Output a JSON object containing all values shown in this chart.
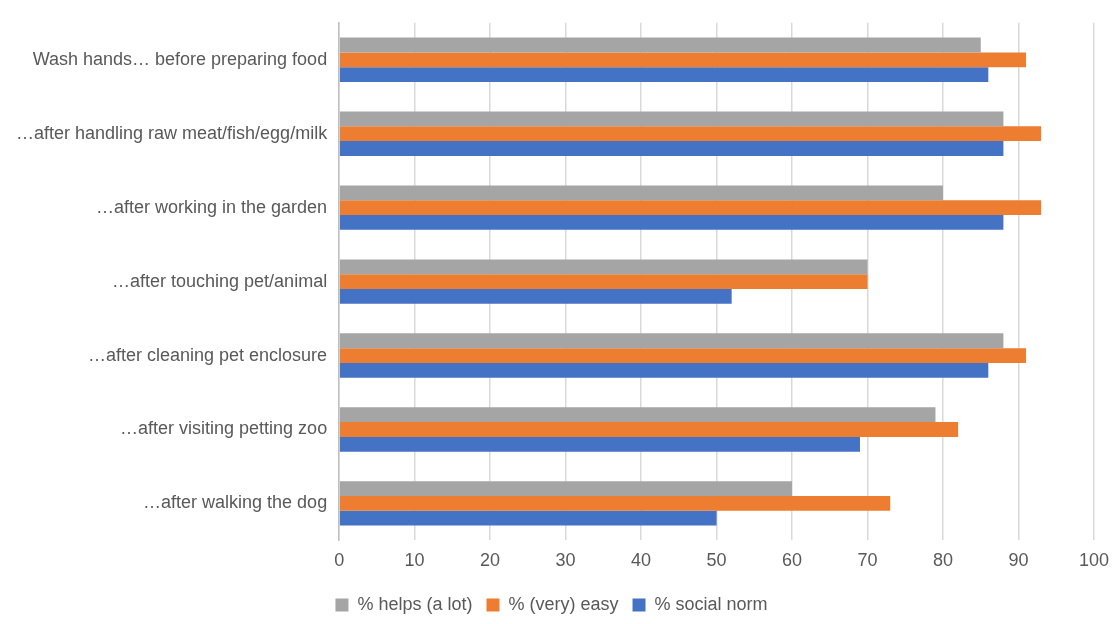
{
  "chart_data": {
    "type": "bar",
    "orientation": "horizontal",
    "categories": [
      "Wash hands… before preparing food",
      "…after handling raw meat/fish/egg/milk",
      "…after working in the garden",
      "…after touching pet/animal",
      "…after cleaning pet enclosure",
      "…after visiting petting zoo",
      "…after walking the dog"
    ],
    "series": [
      {
        "name": "% helps (a lot)",
        "color": "#a5a5a5",
        "values": [
          85,
          88,
          80,
          70,
          88,
          79,
          60
        ]
      },
      {
        "name": "% (very) easy",
        "color": "#ed7d31",
        "values": [
          91,
          93,
          93,
          70,
          91,
          82,
          73
        ]
      },
      {
        "name": "% social norm",
        "color": "#4472c4",
        "values": [
          86,
          88,
          88,
          52,
          86,
          69,
          50
        ]
      }
    ],
    "xlim": [
      0,
      100
    ],
    "xticks": [
      0,
      10,
      20,
      30,
      40,
      50,
      60,
      70,
      80,
      90,
      100
    ],
    "grid": "x",
    "legend": "bottom"
  }
}
